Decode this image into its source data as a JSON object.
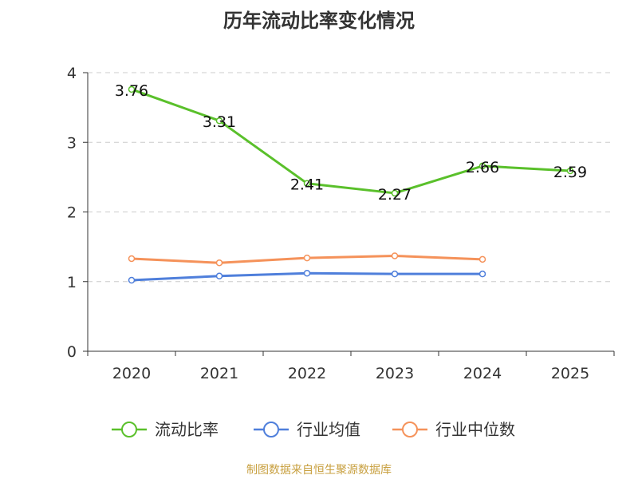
{
  "chart_data": {
    "type": "line",
    "title": "历年流动比率变化情况",
    "categories": [
      "2020",
      "2021",
      "2022",
      "2023",
      "2024",
      "2025"
    ],
    "ylim": [
      0,
      4
    ],
    "yticks": [
      "0",
      "1",
      "2",
      "3",
      "4"
    ],
    "grid": true,
    "legend_position": "bottom",
    "series": [
      {
        "name": "流动比率",
        "color": "#5ac02b",
        "values": [
          3.76,
          3.31,
          2.41,
          2.27,
          2.66,
          2.59
        ],
        "labels": [
          "3.76",
          "3.31",
          "2.41",
          "2.27",
          "2.66",
          "2.59"
        ]
      },
      {
        "name": "行业均值",
        "color": "#4f7fdb",
        "values": [
          1.02,
          1.08,
          1.12,
          1.11,
          1.11,
          null
        ]
      },
      {
        "name": "行业中位数",
        "color": "#f5925a",
        "values": [
          1.33,
          1.27,
          1.34,
          1.37,
          1.32,
          null
        ]
      }
    ]
  },
  "source_note": "制图数据来自恒生聚源数据库"
}
